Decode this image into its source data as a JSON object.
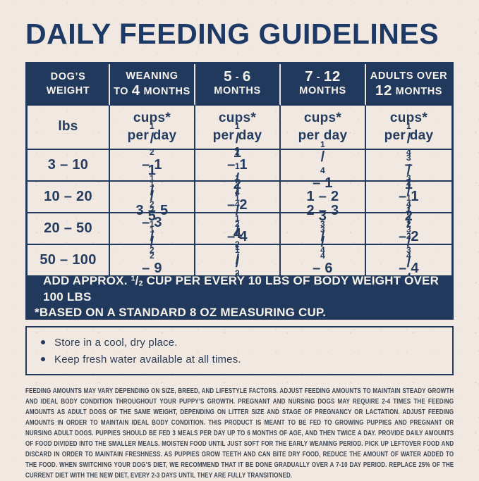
{
  "page": {
    "title": "DAILY FEEDING GUIDELINES"
  },
  "colors": {
    "navy": "#20395c",
    "background_cream": "#f1e9e1",
    "text_light": "#f6f1e9",
    "fine_print_text": "#3e4856"
  },
  "table": {
    "columns": [
      {
        "line1": "DOG’S",
        "line2": "WEIGHT"
      },
      {
        "line1": "WEANING",
        "line2": "TO 4 MONTHS"
      },
      {
        "line1": "5 - 6",
        "line2": "MONTHS"
      },
      {
        "line1": "7 - 12",
        "line2": "MONTHS"
      },
      {
        "line1": "ADULTS OVER",
        "line2": "12 MONTHS"
      }
    ],
    "units_row": {
      "weight_unit": "lbs",
      "unit_line1": "cups*",
      "unit_line2": "per day"
    },
    "rows": [
      {
        "weight": "3 – 10",
        "values": [
          "1/2 – 1 1/2",
          "1/2 – 1 1/4",
          "1/4 – 1",
          "1/4 – 3/4"
        ]
      },
      {
        "weight": "10 – 20",
        "values": [
          "1 1/2 – 3",
          "1 1/4 – 2 1/2",
          "1 – 2",
          "3/4 – 1 1/2"
        ]
      },
      {
        "weight": "20 – 50",
        "values": [
          "3 – 5 1/2",
          "2 1/2 – 4 1/2",
          "2 – 3 3/4",
          "1 1/2 – 2 3/4"
        ]
      },
      {
        "weight": "50 – 100",
        "values": [
          "5 1/2 – 9 1/2",
          "4 1/2 – 8",
          "3 3/4 – 6 1/4",
          "2 3/4 – 4 3/4"
        ]
      }
    ],
    "footer_note_line1": "ADD APPROX. 1/2 CUP PER EVERY 10 LBS OF BODY WEIGHT OVER 100 LBS",
    "footer_note_line2": "*BASED ON A STANDARD 8 OZ MEASURING CUP."
  },
  "tips": {
    "items": [
      "Store in a cool, dry place.",
      "Keep fresh water available at all times."
    ]
  },
  "fine_print": "FEEDING AMOUNTS MAY VARY DEPENDING ON SIZE, BREED, AND LIFESTYLE FACTORS. ADJUST FEEDING AMOUNTS TO MAINTAIN STEADY GROWTH AND IDEAL BODY CONDITION THROUGHOUT YOUR PUPPY’S GROWTH. PREGNANT AND NURSING DOGS MAY REQUIRE 2-4 TIMES THE FEEDING AMOUNTS AS ADULT DOGS OF THE SAME WEIGHT, DEPENDING ON LITTER SIZE AND STAGE OF PREGNANCY OR LACTATION. ADJUST FEEDING AMOUNTS IN ORDER TO MAINTAIN IDEAL BODY CONDITION. THIS PRODUCT IS MEANT TO BE FED TO GROWING PUPPIES AND PREGNANT OR NURSING ADULT DOGS. PUPPIES SHOULD BE FED 3 MEALS PER DAY UP TO 6 MONTHS OF AGE, AND THEN TWICE A DAY. PROVIDE DAILY AMOUNTS OF FOOD DIVIDED INTO THE SMALLER MEALS. MOISTEN FOOD UNTIL JUST SOFT FOR THE EARLY WEANING PERIOD. PICK UP LEFTOVER FOOD AND DISCARD IN ORDER TO MAINTAIN FRESHNESS. AS PUPPIES GROW TEETH AND CAN BITE DRY FOOD, REDUCE THE AMOUNT OF WATER ADDED TO THE FOOD. WHEN SWITCHING YOUR DOG’S DIET, WE RECOMMEND THAT IT BE DONE GRADUALLY OVER A 7-10 DAY PERIOD. REPLACE 25% OF THE CURRENT DIET WITH THE NEW DIET, EVERY 2-3 DAYS UNTIL THEY ARE FULLY TRANSITIONED."
}
